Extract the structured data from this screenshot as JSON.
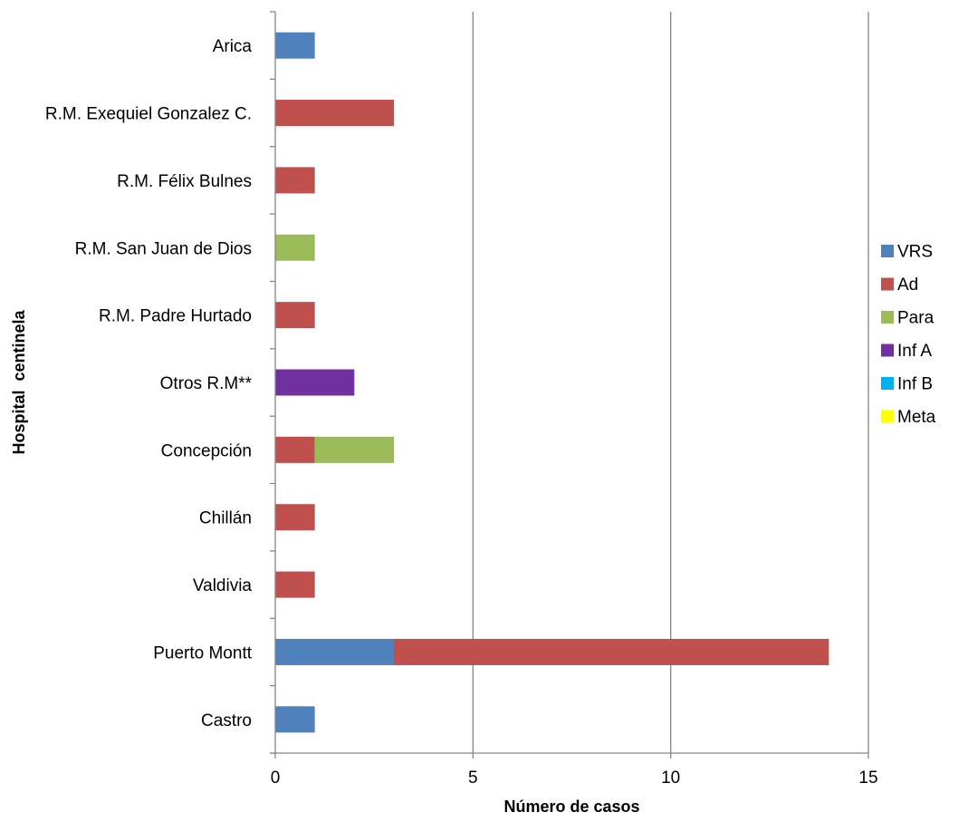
{
  "chart_data": {
    "type": "bar",
    "orientation": "horizontal",
    "stacked": true,
    "title": "",
    "xlabel": "Número de casos",
    "ylabel": "Hospital  centinela",
    "xlim": [
      0,
      15
    ],
    "x_ticks": [
      0,
      5,
      10,
      15
    ],
    "grid": "vertical major gridlines",
    "legend_position": "right",
    "categories": [
      "Arica",
      "R.M. Exequiel Gonzalez C.",
      "R.M. Félix Bulnes",
      "R.M. San Juan de Dios",
      "R.M. Padre Hurtado",
      "Otros R.M**",
      "Concepción",
      "Chillán",
      "Valdivia",
      "Puerto Montt",
      "Castro"
    ],
    "series": [
      {
        "name": "VRS",
        "color": "#4F81BD",
        "values": [
          1,
          0,
          0,
          0,
          0,
          0,
          0,
          0,
          0,
          3,
          1
        ]
      },
      {
        "name": "Ad",
        "color": "#C0504D",
        "values": [
          0,
          3,
          1,
          0,
          1,
          0,
          1,
          1,
          1,
          11,
          0
        ]
      },
      {
        "name": "Para",
        "color": "#9BBB59",
        "values": [
          0,
          0,
          0,
          1,
          0,
          0,
          2,
          0,
          0,
          0,
          0
        ]
      },
      {
        "name": "Inf A",
        "color": "#7030A0",
        "values": [
          0,
          0,
          0,
          0,
          0,
          2,
          0,
          0,
          0,
          0,
          0
        ]
      },
      {
        "name": "Inf B",
        "color": "#00B0F0",
        "values": [
          0,
          0,
          0,
          0,
          0,
          0,
          0,
          0,
          0,
          0,
          0
        ]
      },
      {
        "name": "Meta",
        "color": "#FFFF00",
        "values": [
          0,
          0,
          0,
          0,
          0,
          0,
          0,
          0,
          0,
          0,
          0
        ]
      }
    ]
  }
}
